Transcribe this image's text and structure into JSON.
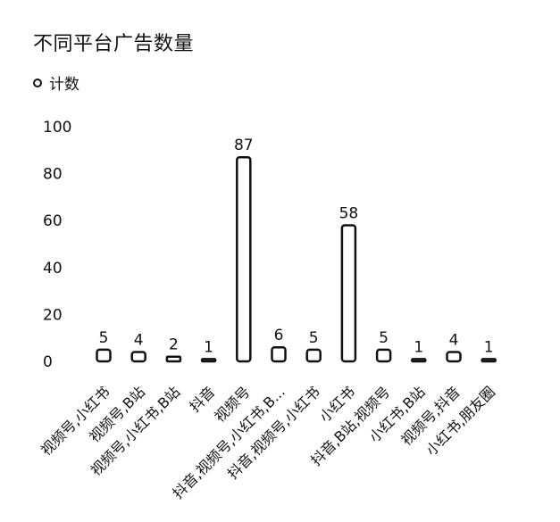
{
  "chart_data": {
    "type": "bar",
    "title": "不同平台广告数量",
    "legend": [
      {
        "name": "计数",
        "position": "top-left"
      }
    ],
    "categories": [
      "视频号,小红书",
      "视频号,B站",
      "视频号,小红书,B站",
      "抖音",
      "视频号",
      "抖音,视频号,小红书,B...",
      "抖音,视频号,小红书",
      "小红书",
      "抖音,B站,视频号",
      "小红书,B站",
      "视频号,抖音",
      "小红书,朋友圈"
    ],
    "series": [
      {
        "name": "计数",
        "values": [
          5,
          4,
          2,
          1,
          87,
          6,
          5,
          58,
          5,
          1,
          4,
          1
        ]
      }
    ],
    "yticks": [
      0,
      20,
      40,
      60,
      80,
      100
    ],
    "ylim": [
      0,
      100
    ],
    "grid": false,
    "bar_fill": "#ffffff",
    "bar_stroke": "#111111"
  }
}
